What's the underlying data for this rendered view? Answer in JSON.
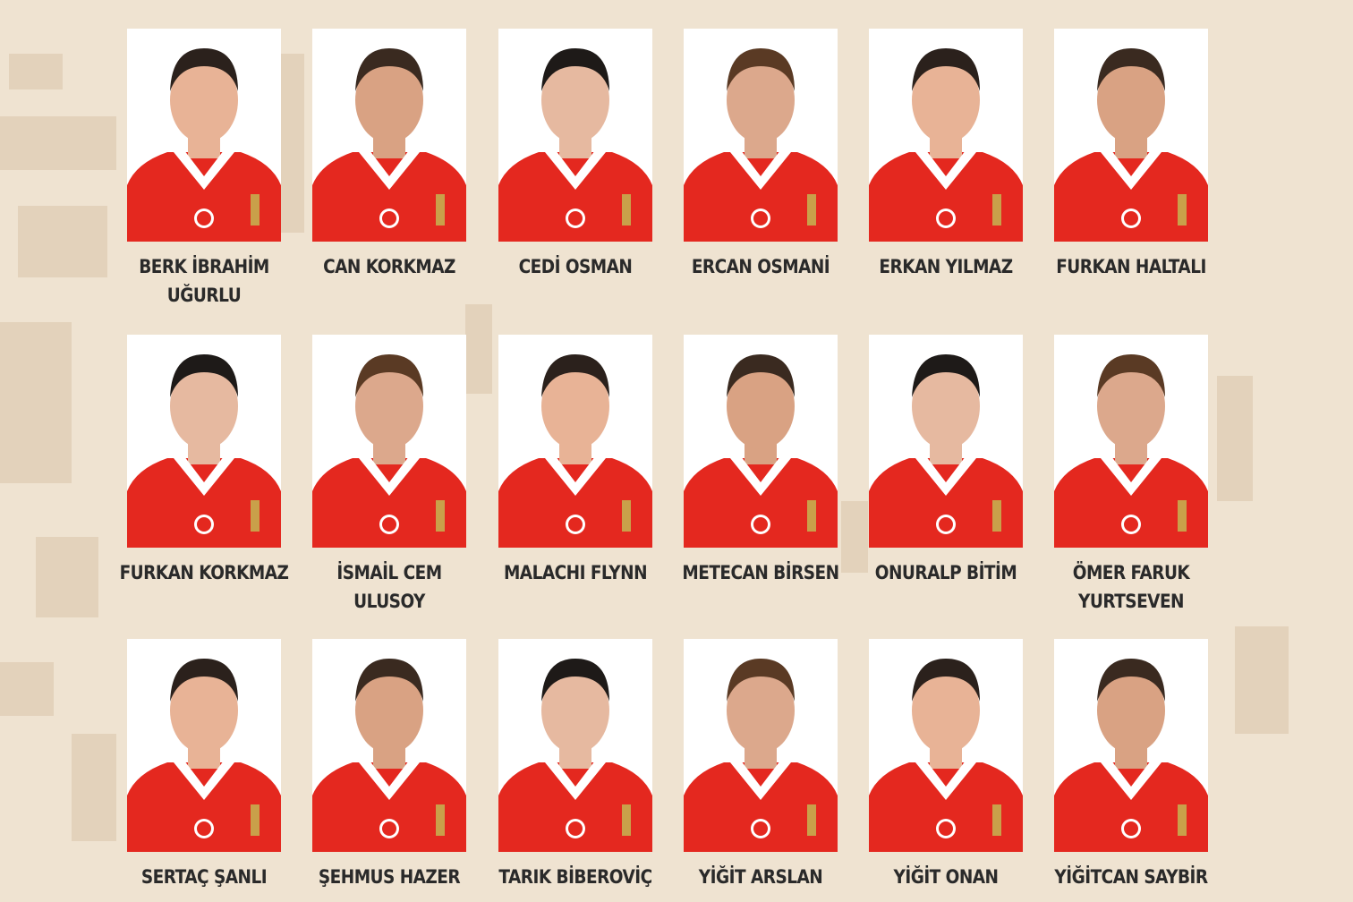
{
  "players": [
    {
      "name": "BERK İBRAHİM UĞURLU"
    },
    {
      "name": "CAN KORKMAZ"
    },
    {
      "name": "CEDİ OSMAN"
    },
    {
      "name": "ERCAN OSMANİ"
    },
    {
      "name": "ERKAN YILMAZ"
    },
    {
      "name": "FURKAN HALTALI"
    },
    {
      "name": "FURKAN KORKMAZ"
    },
    {
      "name": "İSMAİL CEM ULUSOY"
    },
    {
      "name": "MALACHI FLYNN"
    },
    {
      "name": "METECAN BİRSEN"
    },
    {
      "name": "ONURALP BİTİM"
    },
    {
      "name": "ÖMER FARUK YURTSEVEN"
    },
    {
      "name": "SERTAÇ ŞANLI"
    },
    {
      "name": "ŞEHMUS HAZER"
    },
    {
      "name": "TARIK BİBEROVİÇ"
    },
    {
      "name": "YİĞİT ARSLAN"
    },
    {
      "name": "YİĞİT ONAN"
    },
    {
      "name": "YİĞİTCAN SAYBİR"
    }
  ]
}
